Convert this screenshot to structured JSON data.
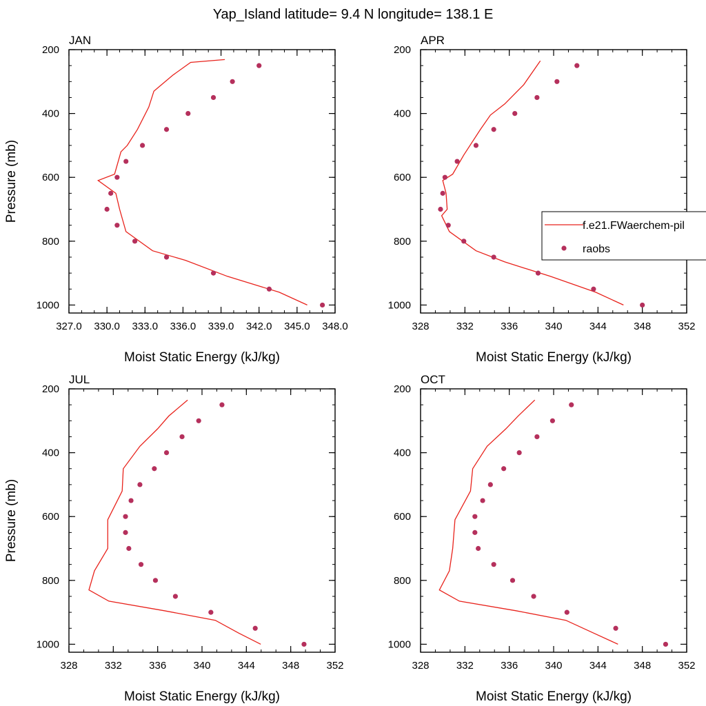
{
  "figure": {
    "title": "Yap_Island  latitude= 9.4 N longitude= 138.1 E"
  },
  "legend": {
    "placement": "right-middle, overlapping APR panel",
    "entries": [
      {
        "label": "f.e21.FWaerchem-pil",
        "kind": "line",
        "color": "#e8221b"
      },
      {
        "label": "raobs",
        "kind": "marker",
        "color": "#b5305c"
      }
    ]
  },
  "colors": {
    "model_line": "#e8221b",
    "raobs_marker": "#b5305c",
    "axis": "#000000"
  },
  "chart_data": [
    {
      "type": "line",
      "panel_label": "JAN",
      "xlabel": "Moist Static Energy (kJ/kg)",
      "ylabel": "Pressure (mb)",
      "xlim": [
        327,
        348
      ],
      "xticks": [
        327,
        330,
        333,
        336,
        339,
        342,
        345,
        348
      ],
      "xtick_labels": [
        "327.0",
        "330.0",
        "333.0",
        "336.0",
        "339.0",
        "342.0",
        "345.0",
        "348.0"
      ],
      "ylim": [
        200,
        1025
      ],
      "y_inverted": true,
      "yticks": [
        200,
        400,
        600,
        800,
        1000
      ],
      "ytick_labels": [
        "200",
        "400",
        "600",
        "800",
        "1000"
      ],
      "grid": false,
      "series": [
        {
          "name": "f.e21.FWaerchem-pil",
          "style": "line",
          "x": [
            345.8,
            343.6,
            339.5,
            336.2,
            333.6,
            331.5,
            331.0,
            330.7,
            329.3,
            330.6,
            331.1,
            331.6,
            332.4,
            333.3,
            333.7,
            335.2,
            336.6,
            339.3
          ],
          "y": [
            1000,
            960,
            910,
            860,
            830,
            770,
            700,
            650,
            610,
            590,
            520,
            500,
            450,
            380,
            330,
            280,
            240,
            231
          ]
        },
        {
          "name": "raobs",
          "style": "marker",
          "x": [
            347.0,
            342.8,
            338.4,
            334.7,
            332.2,
            330.8,
            330.0,
            330.3,
            330.8,
            331.5,
            332.8,
            334.7,
            336.4,
            338.4,
            339.9,
            342.0
          ],
          "y": [
            1000,
            950,
            900,
            850,
            800,
            750,
            700,
            650,
            600,
            550,
            500,
            450,
            400,
            350,
            300,
            250
          ]
        }
      ]
    },
    {
      "type": "line",
      "panel_label": "APR",
      "xlabel": "Moist Static Energy (kJ/kg)",
      "ylabel": "",
      "xlim": [
        328,
        352
      ],
      "xticks": [
        328,
        332,
        336,
        340,
        344,
        348,
        352
      ],
      "xtick_labels": [
        "328",
        "332",
        "336",
        "340",
        "344",
        "348",
        "352"
      ],
      "ylim": [
        200,
        1025
      ],
      "y_inverted": true,
      "yticks": [
        200,
        400,
        600,
        800,
        1000
      ],
      "ytick_labels": [
        "200",
        "400",
        "600",
        "800",
        "1000"
      ],
      "grid": false,
      "series": [
        {
          "name": "f.e21.FWaerchem-pil",
          "style": "line",
          "x": [
            346.3,
            343.8,
            339.7,
            335.6,
            333.0,
            330.6,
            329.9,
            330.4,
            330.3,
            330.0,
            330.9,
            331.9,
            333.4,
            334.3,
            335.6,
            337.3,
            338.8
          ],
          "y": [
            1000,
            960,
            910,
            865,
            830,
            770,
            720,
            700,
            650,
            610,
            590,
            530,
            450,
            405,
            370,
            310,
            235
          ]
        },
        {
          "name": "raobs",
          "style": "marker",
          "x": [
            348.0,
            343.6,
            338.6,
            334.6,
            331.9,
            330.5,
            329.8,
            330.0,
            330.2,
            331.3,
            333.0,
            334.6,
            336.5,
            338.5,
            340.3,
            342.1
          ],
          "y": [
            1000,
            950,
            900,
            850,
            800,
            750,
            700,
            650,
            600,
            550,
            500,
            450,
            400,
            350,
            300,
            250
          ]
        }
      ]
    },
    {
      "type": "line",
      "panel_label": "JUL",
      "xlabel": "Moist Static Energy (kJ/kg)",
      "ylabel": "Pressure (mb)",
      "xlim": [
        328,
        352
      ],
      "xticks": [
        328,
        332,
        336,
        340,
        344,
        348,
        352
      ],
      "xtick_labels": [
        "328",
        "332",
        "336",
        "340",
        "344",
        "348",
        "352"
      ],
      "ylim": [
        200,
        1025
      ],
      "y_inverted": true,
      "yticks": [
        200,
        400,
        600,
        800,
        1000
      ],
      "ytick_labels": [
        "200",
        "400",
        "600",
        "800",
        "1000"
      ],
      "grid": false,
      "series": [
        {
          "name": "f.e21.FWaerchem-pil",
          "style": "line",
          "x": [
            345.3,
            343.3,
            341.2,
            336.6,
            331.6,
            329.8,
            330.3,
            331.5,
            331.5,
            331.5,
            332.8,
            332.9,
            334.4,
            336.0,
            337.0,
            338.7
          ],
          "y": [
            1000,
            965,
            925,
            895,
            865,
            830,
            770,
            700,
            650,
            610,
            520,
            450,
            380,
            325,
            285,
            235
          ]
        },
        {
          "name": "raobs",
          "style": "marker",
          "x": [
            349.2,
            344.8,
            340.8,
            337.6,
            335.8,
            334.5,
            333.4,
            333.1,
            333.1,
            333.6,
            334.4,
            335.7,
            336.8,
            338.2,
            339.7,
            341.8
          ],
          "y": [
            1000,
            950,
            900,
            850,
            800,
            750,
            700,
            650,
            600,
            550,
            500,
            450,
            400,
            350,
            300,
            250
          ]
        }
      ]
    },
    {
      "type": "line",
      "panel_label": "OCT",
      "xlabel": "Moist Static Energy (kJ/kg)",
      "ylabel": "",
      "xlim": [
        328,
        352
      ],
      "xticks": [
        328,
        332,
        336,
        340,
        344,
        348,
        352
      ],
      "xtick_labels": [
        "328",
        "332",
        "336",
        "340",
        "344",
        "348",
        "352"
      ],
      "ylim": [
        200,
        1025
      ],
      "y_inverted": true,
      "yticks": [
        200,
        400,
        600,
        800,
        1000
      ],
      "ytick_labels": [
        "200",
        "400",
        "600",
        "800",
        "1000"
      ],
      "grid": false,
      "series": [
        {
          "name": "f.e21.FWaerchem-pil",
          "style": "line",
          "x": [
            345.8,
            343.6,
            341.1,
            336.6,
            331.5,
            329.7,
            330.6,
            330.9,
            331.1,
            332.5,
            332.7,
            334.0,
            335.7,
            336.8,
            338.3
          ],
          "y": [
            1000,
            965,
            925,
            895,
            865,
            830,
            770,
            700,
            610,
            520,
            450,
            380,
            325,
            285,
            235
          ]
        },
        {
          "name": "raobs",
          "style": "marker",
          "x": [
            350.1,
            345.6,
            341.2,
            338.2,
            336.3,
            334.6,
            333.2,
            332.9,
            332.9,
            333.6,
            334.3,
            335.5,
            336.9,
            338.5,
            339.9,
            341.6
          ],
          "y": [
            1000,
            950,
            900,
            850,
            800,
            750,
            700,
            650,
            600,
            550,
            500,
            450,
            400,
            350,
            300,
            250
          ]
        }
      ]
    }
  ]
}
